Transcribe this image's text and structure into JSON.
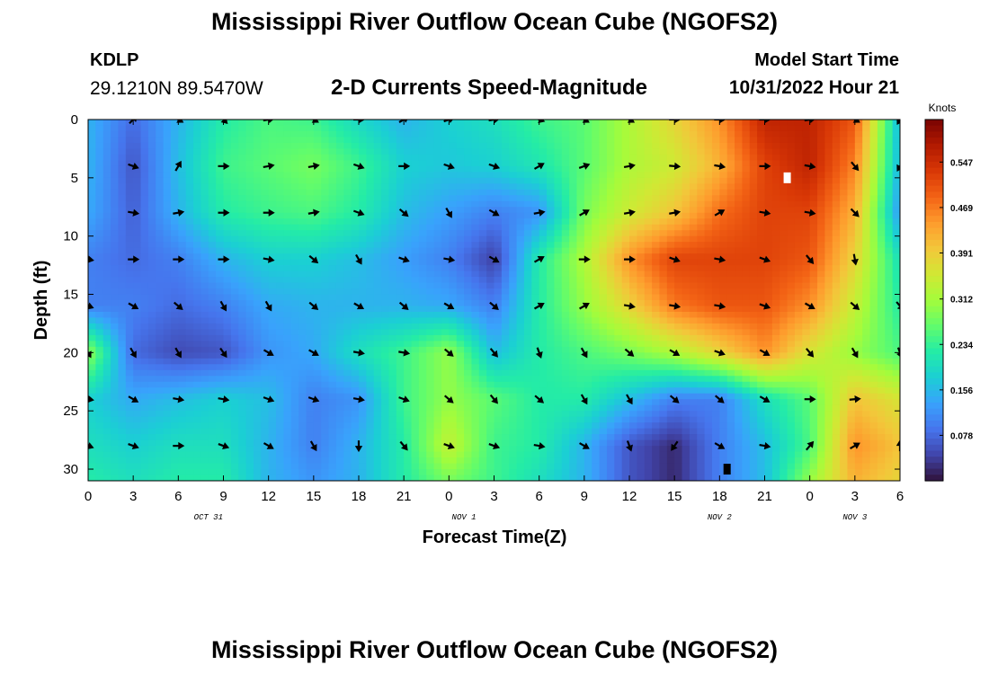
{
  "header": {
    "title": "Mississippi River Outflow Ocean Cube (NGOFS2)",
    "station_id": "KDLP",
    "station_coords": "29.1210N  89.5470W",
    "subtitle": "2-D Currents Speed-Magnitude",
    "model_label": "Model Start Time",
    "model_time": "10/31/2022 Hour 21"
  },
  "footer": {
    "title": "Mississippi River Outflow Ocean Cube (NGOFS2)"
  },
  "colors": {
    "colormap": [
      "#30123b",
      "#4145ab",
      "#4675ed",
      "#39a2fc",
      "#1bcfd4",
      "#24eca6",
      "#61fc6c",
      "#a4fc3b",
      "#d1e834",
      "#f3c63a",
      "#fe9b2d",
      "#f36315",
      "#d93806",
      "#b11901",
      "#7a0402"
    ],
    "arrow": "#000000"
  },
  "chart_data": {
    "type": "heatmap",
    "title": "2-D Currents Speed-Magnitude",
    "xlabel": "Forecast Time(Z)",
    "ylabel": "Depth (ft)",
    "xlim": [
      0,
      54
    ],
    "ylim": [
      31,
      0
    ],
    "x_ticks": [
      0,
      3,
      6,
      9,
      12,
      15,
      18,
      21,
      24,
      27,
      30,
      33,
      36,
      39,
      42,
      45,
      48,
      51,
      54
    ],
    "x_tick_labels": [
      "0",
      "3",
      "6",
      "9",
      "12",
      "15",
      "18",
      "21",
      "0",
      "3",
      "6",
      "9",
      "12",
      "15",
      "18",
      "21",
      "0",
      "3",
      "6"
    ],
    "y_ticks": [
      0,
      5,
      10,
      15,
      20,
      25,
      30
    ],
    "y_tick_labels": [
      "0",
      "5",
      "10",
      "15",
      "20",
      "25",
      "30"
    ],
    "dates": [
      {
        "label": "OCT 31",
        "x": 8
      },
      {
        "label": "NOV 1",
        "x": 25
      },
      {
        "label": "NOV 2",
        "x": 42
      },
      {
        "label": "NOV 3",
        "x": 51
      }
    ],
    "colorbar": {
      "label": "Knots",
      "range": [
        0,
        0.62
      ],
      "ticks": [
        0.547,
        0.469,
        0.391,
        0.312,
        0.234,
        0.156,
        0.078
      ],
      "tick_labels": [
        "0.547",
        "0.469",
        "0.391",
        "0.312",
        "0.234",
        "0.156",
        "0.078"
      ]
    },
    "grid_times": [
      0,
      3,
      6,
      9,
      12,
      15,
      18,
      21,
      24,
      27,
      30,
      33,
      36,
      39,
      42,
      45,
      48,
      51,
      54
    ],
    "grid_depths": [
      0,
      4,
      8,
      12,
      16,
      20,
      24,
      28,
      31
    ],
    "speed_knots": [
      [
        0.15,
        0.08,
        0.15,
        0.22,
        0.25,
        0.24,
        0.19,
        0.15,
        0.18,
        0.2,
        0.24,
        0.26,
        0.32,
        0.38,
        0.45,
        0.56,
        0.56,
        0.5,
        0.15
      ],
      [
        0.15,
        0.06,
        0.16,
        0.24,
        0.26,
        0.28,
        0.24,
        0.18,
        0.17,
        0.18,
        0.21,
        0.26,
        0.32,
        0.35,
        0.42,
        0.52,
        0.56,
        0.46,
        0.15
      ],
      [
        0.14,
        0.07,
        0.15,
        0.22,
        0.24,
        0.25,
        0.22,
        0.16,
        0.13,
        0.1,
        0.12,
        0.28,
        0.35,
        0.4,
        0.48,
        0.52,
        0.52,
        0.42,
        0.12
      ],
      [
        0.1,
        0.08,
        0.1,
        0.15,
        0.18,
        0.18,
        0.16,
        0.13,
        0.1,
        0.04,
        0.22,
        0.32,
        0.45,
        0.52,
        0.52,
        0.52,
        0.5,
        0.38,
        0.2
      ],
      [
        0.1,
        0.1,
        0.08,
        0.1,
        0.14,
        0.15,
        0.15,
        0.15,
        0.14,
        0.1,
        0.22,
        0.3,
        0.38,
        0.47,
        0.5,
        0.5,
        0.45,
        0.34,
        0.22
      ],
      [
        0.3,
        0.08,
        0.05,
        0.06,
        0.12,
        0.14,
        0.2,
        0.24,
        0.3,
        0.16,
        0.22,
        0.25,
        0.28,
        0.32,
        0.38,
        0.45,
        0.36,
        0.3,
        0.25
      ],
      [
        0.18,
        0.14,
        0.16,
        0.18,
        0.16,
        0.1,
        0.12,
        0.24,
        0.3,
        0.26,
        0.22,
        0.22,
        0.16,
        0.1,
        0.1,
        0.2,
        0.26,
        0.4,
        0.36
      ],
      [
        0.2,
        0.18,
        0.2,
        0.2,
        0.15,
        0.1,
        0.15,
        0.22,
        0.34,
        0.24,
        0.22,
        0.15,
        0.06,
        0.02,
        0.1,
        0.16,
        0.25,
        0.45,
        0.4
      ],
      [
        0.22,
        0.2,
        0.22,
        0.22,
        0.15,
        0.12,
        0.15,
        0.22,
        0.28,
        0.24,
        0.2,
        0.15,
        0.06,
        0.02,
        0.1,
        0.16,
        0.3,
        0.42,
        0.38
      ]
    ],
    "arrow_times": [
      0,
      3,
      6,
      9,
      12,
      15,
      18,
      21,
      24,
      27,
      30,
      33,
      36,
      39,
      42,
      45,
      48,
      51,
      54
    ],
    "arrow_depths": [
      0,
      4,
      8,
      12,
      16,
      20,
      24,
      28
    ],
    "arrow_dir_deg": [
      [
        null,
        45,
        120,
        135,
        80,
        120,
        90,
        60,
        70,
        80,
        110,
        120,
        120,
        90,
        90,
        90,
        80,
        120,
        210
      ],
      [
        null,
        110,
        30,
        90,
        80,
        80,
        110,
        90,
        110,
        110,
        60,
        70,
        80,
        95,
        100,
        90,
        100,
        140,
        210
      ],
      [
        null,
        100,
        80,
        90,
        90,
        80,
        110,
        130,
        150,
        120,
        80,
        60,
        80,
        80,
        60,
        100,
        100,
        135,
        null
      ],
      [
        100,
        90,
        90,
        90,
        100,
        130,
        150,
        110,
        100,
        120,
        60,
        90,
        90,
        110,
        100,
        110,
        140,
        170,
        null
      ],
      [
        110,
        120,
        130,
        150,
        150,
        130,
        120,
        130,
        120,
        130,
        60,
        60,
        100,
        100,
        100,
        110,
        120,
        130,
        140
      ],
      [
        150,
        150,
        150,
        145,
        120,
        120,
        100,
        100,
        130,
        140,
        160,
        150,
        130,
        120,
        110,
        120,
        140,
        150,
        160
      ],
      [
        100,
        120,
        100,
        100,
        110,
        110,
        100,
        110,
        130,
        140,
        130,
        150,
        150,
        130,
        130,
        120,
        90,
        85,
        null
      ],
      [
        110,
        110,
        90,
        110,
        120,
        150,
        180,
        140,
        110,
        110,
        100,
        120,
        160,
        215,
        120,
        100,
        40,
        60,
        0
      ]
    ],
    "annotations": [
      {
        "x": 46.5,
        "y": 5,
        "color": "#ffffff"
      },
      {
        "x": 42.5,
        "y": 30,
        "color": "#000000"
      }
    ]
  }
}
